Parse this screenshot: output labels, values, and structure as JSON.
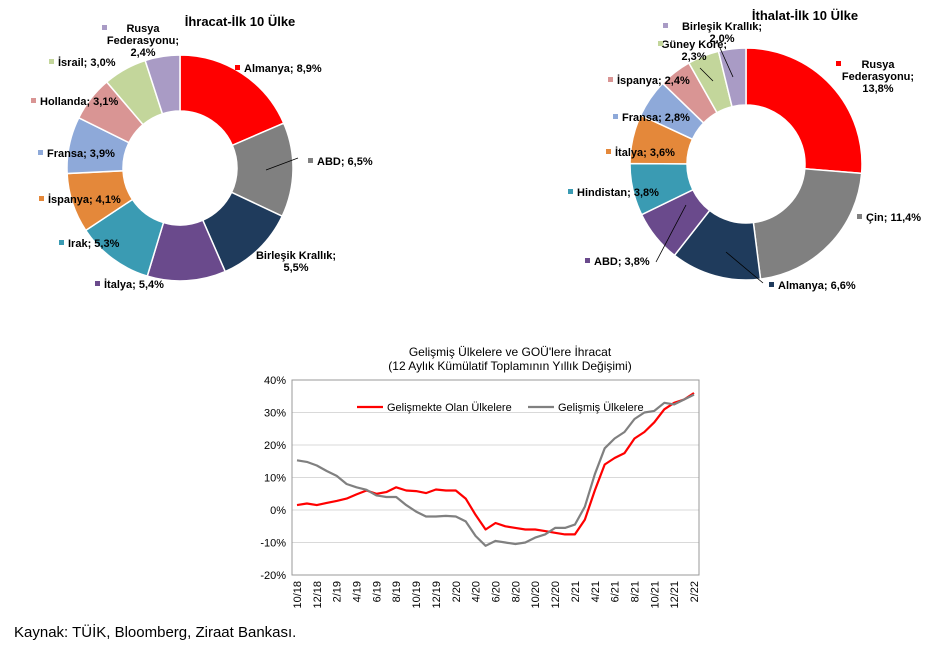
{
  "source_note": "Kaynak: TÜİK, Bloomberg, Ziraat Bankası.",
  "chart_data": [
    {
      "type": "pie",
      "title": "İhracat-İlk 10 Ülke",
      "slices": [
        {
          "label": "Almanya; 8,9%",
          "value": 8.9,
          "color": "#ff0000"
        },
        {
          "label": "ABD; 6,5%",
          "value": 6.5,
          "color": "#808080"
        },
        {
          "label": [
            "Birleşik Krallık;",
            "5,5%"
          ],
          "value": 5.5,
          "color": "#1f3b5c"
        },
        {
          "label": "İtalya; 5,4%",
          "value": 5.4,
          "color": "#6a4a8c"
        },
        {
          "label": "Irak; 5,3%",
          "value": 5.3,
          "color": "#3a9bb3"
        },
        {
          "label": "İspanya; 4,1%",
          "value": 4.1,
          "color": "#e4883a"
        },
        {
          "label": "Fransa; 3,9%",
          "value": 3.9,
          "color": "#8ea9d9"
        },
        {
          "label": "Hollanda; 3,1%",
          "value": 3.1,
          "color": "#d99594"
        },
        {
          "label": "İsrail; 3,0%",
          "value": 3.0,
          "color": "#c3d69b"
        },
        {
          "label": [
            "Rusya",
            "Federasyonu;",
            "2,4%"
          ],
          "value": 2.4,
          "color": "#a99bc5"
        }
      ]
    },
    {
      "type": "pie",
      "title": "İthalat-İlk 10 Ülke",
      "slices": [
        {
          "label": [
            "Rusya",
            "Federasyonu;",
            "13,8%"
          ],
          "value": 13.8,
          "color": "#ff0000"
        },
        {
          "label": "Çin; 11,4%",
          "value": 11.4,
          "color": "#808080"
        },
        {
          "label": "Almanya; 6,6%",
          "value": 6.6,
          "color": "#1f3b5c"
        },
        {
          "label": "ABD; 3,8%",
          "value": 3.8,
          "color": "#6a4a8c"
        },
        {
          "label": "Hindistan; 3,8%",
          "value": 3.8,
          "color": "#3a9bb3"
        },
        {
          "label": "İtalya; 3,6%",
          "value": 3.6,
          "color": "#e4883a"
        },
        {
          "label": "Fransa; 2,8%",
          "value": 2.8,
          "color": "#8ea9d9"
        },
        {
          "label": "İspanya; 2,4%",
          "value": 2.4,
          "color": "#d99594"
        },
        {
          "label": [
            "Güney Kore;",
            "2,3%"
          ],
          "value": 2.3,
          "color": "#c3d69b"
        },
        {
          "label": [
            "Birleşik Krallık;",
            "2,0%"
          ],
          "value": 2.0,
          "color": "#a99bc5"
        }
      ]
    },
    {
      "type": "line",
      "title": [
        "Gelişmiş Ülkelere ve GOÜ'lere İhracat",
        "(12 Aylık Kümülatif Toplamının Yıllık Değişimi)"
      ],
      "ylim": [
        -20,
        40
      ],
      "yticks": [
        "40%",
        "30%",
        "20%",
        "10%",
        "0%",
        "-10%",
        "-20%"
      ],
      "grid": true,
      "legend": "top",
      "x": [
        "10/18",
        "11/18",
        "12/18",
        "1/19",
        "2/19",
        "3/19",
        "4/19",
        "5/19",
        "6/19",
        "7/19",
        "8/19",
        "9/19",
        "10/19",
        "11/19",
        "12/19",
        "1/20",
        "2/20",
        "3/20",
        "4/20",
        "5/20",
        "6/20",
        "7/20",
        "8/20",
        "9/20",
        "10/20",
        "11/20",
        "12/20",
        "1/21",
        "2/21",
        "3/21",
        "4/21",
        "5/21",
        "6/21",
        "7/21",
        "8/21",
        "9/21",
        "10/21",
        "11/21",
        "12/21",
        "1/22",
        "2/22"
      ],
      "xtick_labels": [
        "10/18",
        "12/18",
        "2/19",
        "4/19",
        "6/19",
        "8/19",
        "10/19",
        "12/19",
        "2/20",
        "4/20",
        "6/20",
        "8/20",
        "10/20",
        "12/20",
        "2/21",
        "4/21",
        "6/21",
        "8/21",
        "10/21",
        "12/21",
        "2/22"
      ],
      "series": [
        {
          "name": "Gelişmekte Olan Ülkelere",
          "color": "#ff0000",
          "values": [
            1.5,
            2,
            1.5,
            2.2,
            2.8,
            3.5,
            4.8,
            6,
            5,
            5.5,
            7,
            6,
            5.8,
            5.2,
            6.3,
            6,
            6,
            3.5,
            -1.5,
            -6,
            -4,
            -5,
            -5.5,
            -6,
            -6,
            -6.5,
            -7,
            -7.5,
            -7.5,
            -3,
            6,
            14,
            16,
            17.5,
            22,
            24,
            27,
            31,
            33,
            34,
            36
          ]
        },
        {
          "name": "Gelişmiş Ülkelere",
          "color": "#808080",
          "values": [
            15.3,
            14.8,
            13.7,
            12,
            10.5,
            8,
            7,
            6.2,
            4.5,
            4,
            4,
            1.5,
            -0.5,
            -2,
            -2,
            -1.8,
            -2,
            -3.5,
            -8,
            -11,
            -9.5,
            -10,
            -10.5,
            -10,
            -8.5,
            -7.5,
            -5.5,
            -5.5,
            -4.5,
            1,
            11,
            19,
            22,
            24,
            28,
            30,
            30.5,
            33,
            32.5,
            34,
            35.5
          ]
        }
      ]
    }
  ]
}
